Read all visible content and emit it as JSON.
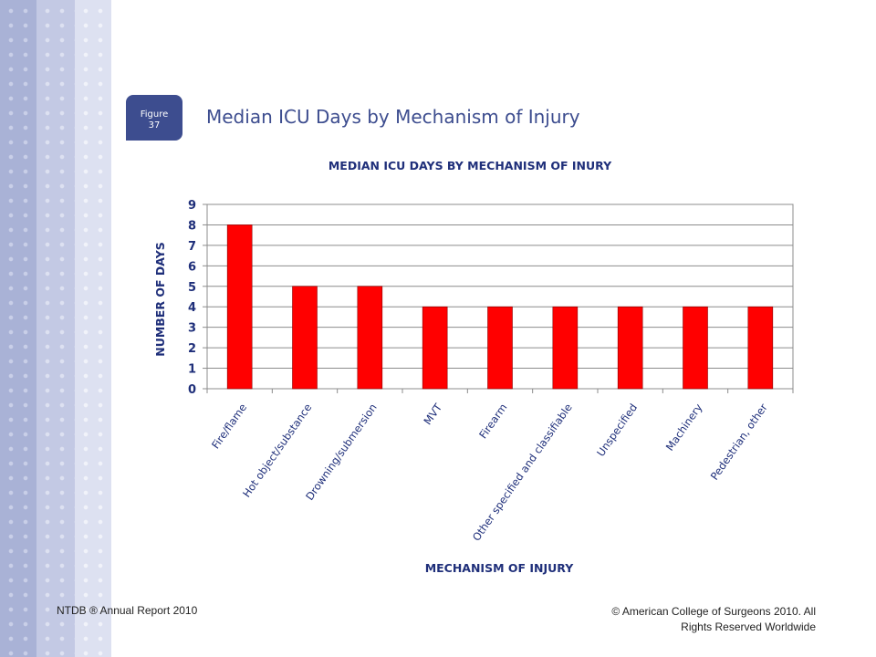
{
  "figure_tab": {
    "label": "Figure",
    "number": "37"
  },
  "slide_title": "Median ICU Days by Mechanism of Injury",
  "footer": {
    "left": "NTDB ® Annual Report 2010",
    "right_line1": "© American College of Surgeons 2010.  All",
    "right_line2": "Rights Reserved Worldwide"
  },
  "colors": {
    "bar": "#ff0000",
    "title": "#3d4d8f",
    "axis_text": "#1f2f7a"
  },
  "chart_data": {
    "type": "bar",
    "title": "MEDIAN ICU DAYS BY MECHANISM OF INURY",
    "xlabel": "MECHANISM OF INJURY",
    "ylabel": "NUMBER OF DAYS",
    "ylim": [
      0,
      9
    ],
    "yticks": [
      0,
      1,
      2,
      3,
      4,
      5,
      6,
      7,
      8,
      9
    ],
    "grid": true,
    "categories": [
      "Fire/flame",
      "Hot object/substance",
      "Drowning/submersion",
      "MVT",
      "Firearm",
      "Other specified and classifiable",
      "Unspecified",
      "Machinery",
      "Pedestrian, other"
    ],
    "values": [
      8,
      5,
      5,
      4,
      4,
      4,
      4,
      4,
      4
    ]
  }
}
